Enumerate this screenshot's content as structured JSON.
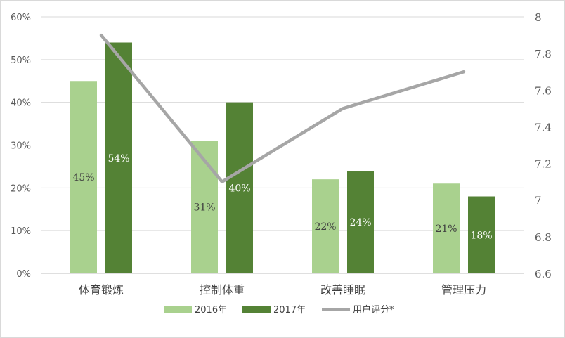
{
  "chart_data": {
    "type": "bar",
    "categories": [
      "体育锻炼",
      "控制体重",
      "改善睡眠",
      "管理压力"
    ],
    "series": [
      {
        "name": "2016年",
        "type": "bar",
        "axis": "left",
        "values": [
          45,
          31,
          22,
          21
        ],
        "labels": [
          "45%",
          "31%",
          "22%",
          "21%"
        ],
        "color": "#a9d18e"
      },
      {
        "name": "2017年",
        "type": "bar",
        "axis": "left",
        "values": [
          54,
          40,
          24,
          18
        ],
        "labels": [
          "54%",
          "40%",
          "24%",
          "18%"
        ],
        "color": "#548235"
      },
      {
        "name": "用户评分*",
        "type": "line",
        "axis": "right",
        "values": [
          7.9,
          7.1,
          7.5,
          7.7
        ],
        "color": "#a6a6a6"
      }
    ],
    "y_left": {
      "min": 0,
      "max": 60,
      "step": 10,
      "tick_labels": [
        "0%",
        "10%",
        "20%",
        "30%",
        "40%",
        "50%",
        "60%"
      ]
    },
    "y_right": {
      "min": 6.6,
      "max": 8.0,
      "step": 0.2,
      "tick_labels": [
        "6.6",
        "6.8",
        "7",
        "7.2",
        "7.4",
        "7.6",
        "7.8",
        "8"
      ]
    },
    "grid": true,
    "legend_position": "bottom"
  }
}
